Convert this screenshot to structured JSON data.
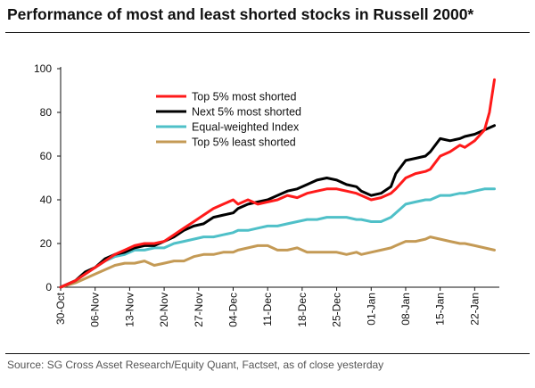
{
  "header": {
    "title": "Performance of most and least shorted stocks in Russell 2000*"
  },
  "footer": {
    "source": "Source: SG Cross Asset Research/Equity Quant, Factset, as of close yesterday"
  },
  "chart_data": {
    "type": "line",
    "title": "Performance of most and least shorted stocks in Russell 2000*",
    "xlabel": "",
    "ylabel": "",
    "ylim": [
      0,
      100
    ],
    "yticks": [
      0,
      20,
      40,
      60,
      80,
      100
    ],
    "xlim": [
      0,
      89
    ],
    "xtick_labels": [
      "30-Oct",
      "06-Nov",
      "13-Nov",
      "20-Nov",
      "27-Nov",
      "04-Dec",
      "11-Dec",
      "18-Dec",
      "25-Dec",
      "01-Jan",
      "08-Jan",
      "15-Jan",
      "22-Jan"
    ],
    "xtick_days": [
      0,
      7,
      14,
      21,
      28,
      35,
      42,
      49,
      56,
      63,
      70,
      77,
      84
    ],
    "legend_position": "upper-left",
    "series": [
      {
        "name": "Top 5% most shorted",
        "color": "#ff1a1a",
        "x": [
          0,
          3,
          5,
          7,
          9,
          11,
          13,
          15,
          17,
          19,
          21,
          23,
          25,
          27,
          29,
          31,
          33,
          35,
          36,
          38,
          40,
          42,
          44,
          46,
          48,
          50,
          52,
          54,
          56,
          58,
          60,
          61,
          63,
          65,
          67,
          68,
          70,
          72,
          74,
          75,
          77,
          79,
          81,
          82,
          84,
          86,
          87,
          88
        ],
        "values": [
          0,
          3,
          6,
          9,
          12,
          15,
          17,
          19,
          20,
          20,
          21,
          24,
          27,
          30,
          33,
          36,
          38,
          40,
          38,
          40,
          38,
          39,
          40,
          42,
          41,
          43,
          44,
          45,
          45,
          44,
          43,
          42,
          40,
          41,
          43,
          45,
          50,
          52,
          53,
          54,
          60,
          62,
          65,
          64,
          67,
          72,
          80,
          95
        ]
      },
      {
        "name": "Next 5% most shorted",
        "color": "#000000",
        "x": [
          0,
          3,
          5,
          7,
          9,
          11,
          13,
          15,
          17,
          19,
          21,
          23,
          25,
          27,
          29,
          31,
          33,
          35,
          36,
          38,
          40,
          42,
          44,
          46,
          48,
          50,
          52,
          54,
          56,
          58,
          60,
          61,
          63,
          65,
          67,
          68,
          70,
          72,
          74,
          75,
          77,
          79,
          81,
          82,
          84,
          86,
          88
        ],
        "values": [
          0,
          3,
          7,
          9,
          13,
          15,
          16,
          18,
          19,
          19,
          21,
          23,
          26,
          28,
          29,
          32,
          33,
          34,
          36,
          38,
          39,
          40,
          42,
          44,
          45,
          47,
          49,
          50,
          49,
          47,
          46,
          44,
          42,
          43,
          46,
          52,
          58,
          59,
          60,
          62,
          68,
          67,
          68,
          69,
          70,
          72,
          74
        ]
      },
      {
        "name": "Equal-weighted Index",
        "color": "#4fc0c8",
        "x": [
          0,
          3,
          5,
          7,
          9,
          11,
          13,
          15,
          17,
          19,
          21,
          23,
          25,
          27,
          29,
          31,
          33,
          35,
          36,
          38,
          40,
          42,
          44,
          46,
          48,
          50,
          52,
          54,
          56,
          58,
          60,
          61,
          63,
          65,
          67,
          68,
          70,
          72,
          74,
          75,
          77,
          79,
          81,
          82,
          84,
          86,
          88
        ],
        "values": [
          0,
          3,
          6,
          9,
          12,
          14,
          15,
          17,
          17,
          18,
          18,
          20,
          21,
          22,
          23,
          23,
          24,
          25,
          26,
          26,
          27,
          28,
          28,
          29,
          30,
          31,
          31,
          32,
          32,
          32,
          31,
          31,
          30,
          30,
          32,
          34,
          38,
          39,
          40,
          40,
          42,
          42,
          43,
          43,
          44,
          45,
          45
        ]
      },
      {
        "name": "Top 5% least shorted",
        "color": "#c49a55",
        "x": [
          0,
          3,
          5,
          7,
          9,
          11,
          13,
          15,
          17,
          19,
          21,
          23,
          25,
          27,
          29,
          31,
          33,
          35,
          36,
          38,
          40,
          42,
          44,
          46,
          48,
          50,
          52,
          54,
          56,
          58,
          60,
          61,
          63,
          65,
          67,
          68,
          70,
          72,
          74,
          75,
          77,
          79,
          81,
          82,
          84,
          86,
          88
        ],
        "values": [
          0,
          2,
          4,
          6,
          8,
          10,
          11,
          11,
          12,
          10,
          11,
          12,
          12,
          14,
          15,
          15,
          16,
          16,
          17,
          18,
          19,
          19,
          17,
          17,
          18,
          16,
          16,
          16,
          16,
          15,
          16,
          15,
          16,
          17,
          18,
          19,
          21,
          21,
          22,
          23,
          22,
          21,
          20,
          20,
          19,
          18,
          17
        ]
      }
    ]
  }
}
